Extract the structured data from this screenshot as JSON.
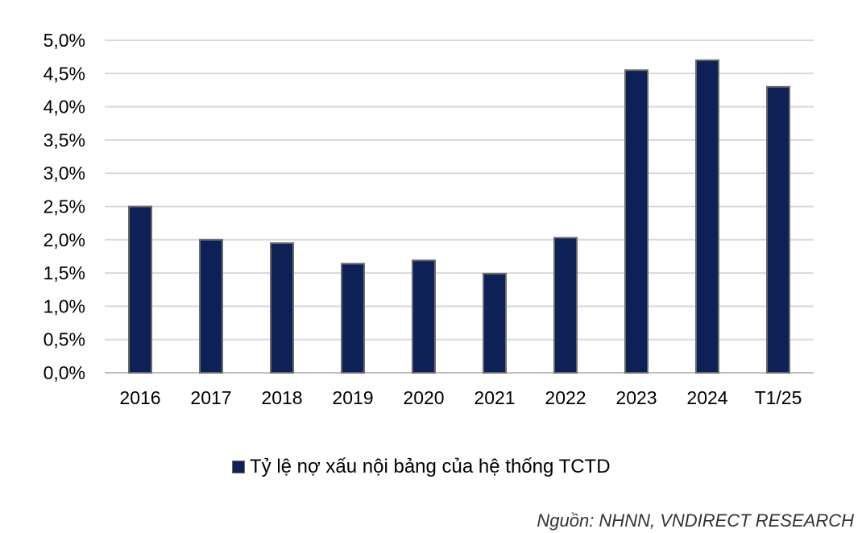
{
  "chart_data": {
    "type": "bar",
    "categories": [
      "2016",
      "2017",
      "2018",
      "2019",
      "2020",
      "2021",
      "2022",
      "2023",
      "2024",
      "T1/25"
    ],
    "series": [
      {
        "name": "Tỷ lệ nợ xấu nội bảng của hệ thống TCTD",
        "values": [
          2.5,
          2.0,
          1.95,
          1.64,
          1.69,
          1.49,
          2.03,
          4.55,
          4.7,
          4.3
        ]
      }
    ],
    "yticks": [
      "0,0%",
      "0,5%",
      "1,0%",
      "1,5%",
      "2,0%",
      "2,5%",
      "3,0%",
      "3,5%",
      "4,0%",
      "4,5%",
      "5,0%"
    ],
    "ylim": [
      0,
      5
    ],
    "ystep": 0.5,
    "grid": true,
    "legend_position": "bottom",
    "bar_color": "#0d2157",
    "bar_outline_color": "#6b6b6b",
    "grid_color": "#d9d9d9"
  },
  "legend": {
    "label": "Tỷ lệ nợ xấu nội bảng của hệ thống TCTD"
  },
  "source": {
    "text": "Nguồn: NHNN, VNDIRECT RESEARCH"
  }
}
